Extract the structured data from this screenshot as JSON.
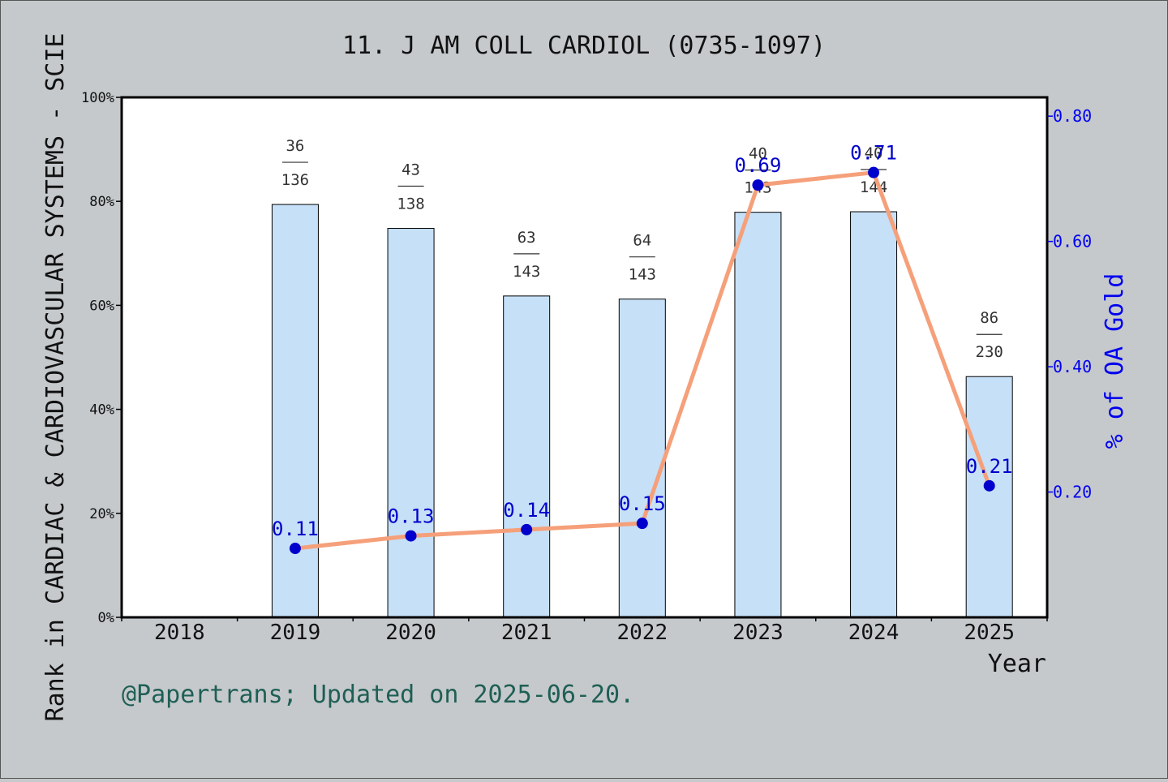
{
  "chart_data": {
    "type": "bar",
    "title": "11. J AM COLL CARDIOL (0735-1097)",
    "xlabel": "Year",
    "ylabel": "Rank in CARDIAC & CARDIOVASCULAR SYSTEMS - SCIE",
    "y2label": "% of OA Gold",
    "categories": [
      "2018",
      "2019",
      "2020",
      "2021",
      "2022",
      "2023",
      "2024",
      "2025"
    ],
    "ylim": [
      0,
      100
    ],
    "y_ticks": [
      "0%",
      "20%",
      "40%",
      "60%",
      "80%",
      "100%"
    ],
    "y2lim": [
      0,
      0.83
    ],
    "y2_ticks": [
      "0.20",
      "0.40",
      "0.60",
      "0.80"
    ],
    "grid": false,
    "series": [
      {
        "kind": "bar",
        "values": [
          null,
          79.4,
          74.8,
          61.8,
          61.2,
          77.9,
          78.0,
          46.3
        ],
        "rank": [
          null,
          "36",
          "43",
          "63",
          "64",
          "40",
          "40",
          "86"
        ],
        "total": [
          null,
          "136",
          "138",
          "143",
          "143",
          "143",
          "144",
          "230"
        ],
        "color": "#c6e0f7"
      },
      {
        "kind": "line",
        "axis": "right",
        "values": [
          null,
          0.11,
          0.13,
          0.14,
          0.15,
          0.69,
          0.71,
          0.21
        ],
        "labels": [
          null,
          "0.11",
          "0.13",
          "0.14",
          "0.15",
          "0.69",
          "0.71",
          "0.21"
        ],
        "color": "#f5a07a",
        "marker_color": "#0000cc"
      }
    ],
    "footnote": "@Papertrans; Updated on 2025-06-20."
  }
}
